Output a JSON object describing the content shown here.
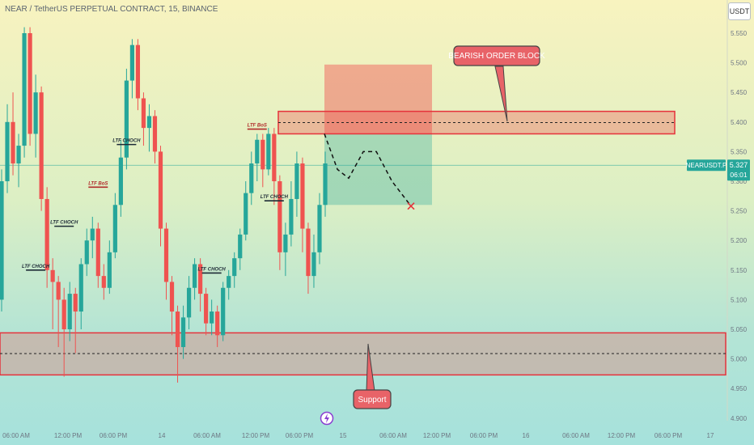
{
  "header": {
    "title": "NEAR / TetherUS PERPETUAL CONTRACT, 15, BINANCE",
    "currency": "USDT"
  },
  "chart_data": {
    "type": "candlestick",
    "symbol": "NEARUSDT.P",
    "y_ticks": [
      "5.550",
      "5.500",
      "5.450",
      "5.400",
      "5.350",
      "5.300",
      "5.250",
      "5.200",
      "5.150",
      "5.100",
      "5.050",
      "5.000",
      "4.950",
      "4.900"
    ],
    "ylim": [
      4.9,
      5.57
    ],
    "x_ticks": [
      "06:00 AM",
      "12:00 PM",
      "06:00 PM",
      "14",
      "06:00 AM",
      "12:00 PM",
      "06:00 PM",
      "15",
      "06:00 AM",
      "12:00 PM",
      "06:00 PM",
      "16",
      "06:00 AM",
      "12:00 PM",
      "06:00 PM",
      "17"
    ],
    "last_price": {
      "label": "NEARUSDT.P",
      "value": "5.327",
      "countdown": "06:01",
      "price": 5.327
    },
    "colors": {
      "up": "#26a69a",
      "down": "#ef5350",
      "zone_border": "#e5323b"
    },
    "candles": [
      [
        5.1,
        5.3,
        5.32,
        5.08
      ],
      [
        5.3,
        5.4,
        5.43,
        5.28
      ],
      [
        5.4,
        5.33,
        5.45,
        5.31
      ],
      [
        5.33,
        5.36,
        5.38,
        5.29
      ],
      [
        5.36,
        5.55,
        5.56,
        5.34
      ],
      [
        5.55,
        5.38,
        5.56,
        5.36
      ],
      [
        5.38,
        5.45,
        5.48,
        5.34
      ],
      [
        5.45,
        5.27,
        5.46,
        5.25
      ],
      [
        5.27,
        5.15,
        5.29,
        5.12
      ],
      [
        5.15,
        5.13,
        5.17,
        5.05
      ],
      [
        5.13,
        5.1,
        5.14,
        5.02
      ],
      [
        5.1,
        5.05,
        5.12,
        4.97
      ],
      [
        5.05,
        5.11,
        5.13,
        5.03
      ],
      [
        5.11,
        5.08,
        5.12,
        5.01
      ],
      [
        5.08,
        5.16,
        5.17,
        5.05
      ],
      [
        5.16,
        5.2,
        5.22,
        5.14
      ],
      [
        5.2,
        5.22,
        5.24,
        5.17
      ],
      [
        5.22,
        5.14,
        5.23,
        5.12
      ],
      [
        5.14,
        5.12,
        5.16,
        5.1
      ],
      [
        5.12,
        5.18,
        5.2,
        5.11
      ],
      [
        5.18,
        5.26,
        5.28,
        5.17
      ],
      [
        5.26,
        5.34,
        5.37,
        5.24
      ],
      [
        5.34,
        5.47,
        5.49,
        5.32
      ],
      [
        5.47,
        5.53,
        5.54,
        5.44
      ],
      [
        5.53,
        5.44,
        5.54,
        5.42
      ],
      [
        5.44,
        5.39,
        5.45,
        5.36
      ],
      [
        5.39,
        5.41,
        5.43,
        5.35
      ],
      [
        5.41,
        5.35,
        5.42,
        5.33
      ],
      [
        5.35,
        5.22,
        5.36,
        5.19
      ],
      [
        5.22,
        5.13,
        5.23,
        5.1
      ],
      [
        5.13,
        5.08,
        5.14,
        5.04
      ],
      [
        5.08,
        5.02,
        5.09,
        4.96
      ],
      [
        5.02,
        5.07,
        5.09,
        5.0
      ],
      [
        5.07,
        5.12,
        5.14,
        5.05
      ],
      [
        5.12,
        5.16,
        5.17,
        5.1
      ],
      [
        5.16,
        5.11,
        5.17,
        5.08
      ],
      [
        5.11,
        5.06,
        5.12,
        5.04
      ],
      [
        5.06,
        5.08,
        5.1,
        5.04
      ],
      [
        5.08,
        5.04,
        5.09,
        5.02
      ],
      [
        5.04,
        5.12,
        5.13,
        5.03
      ],
      [
        5.12,
        5.14,
        5.15,
        5.1
      ],
      [
        5.14,
        5.17,
        5.18,
        5.12
      ],
      [
        5.17,
        5.21,
        5.22,
        5.15
      ],
      [
        5.21,
        5.28,
        5.3,
        5.2
      ],
      [
        5.28,
        5.33,
        5.35,
        5.26
      ],
      [
        5.33,
        5.37,
        5.38,
        5.3
      ],
      [
        5.37,
        5.32,
        5.38,
        5.29
      ],
      [
        5.32,
        5.38,
        5.39,
        5.31
      ],
      [
        5.38,
        5.3,
        5.39,
        5.26
      ],
      [
        5.3,
        5.18,
        5.31,
        5.15
      ],
      [
        5.18,
        5.21,
        5.23,
        5.14
      ],
      [
        5.21,
        5.27,
        5.3,
        5.19
      ],
      [
        5.27,
        5.33,
        5.35,
        5.24
      ],
      [
        5.33,
        5.22,
        5.34,
        5.18
      ],
      [
        5.22,
        5.14,
        5.23,
        5.11
      ],
      [
        5.14,
        5.18,
        5.21,
        5.12
      ],
      [
        5.18,
        5.26,
        5.28,
        5.16
      ],
      [
        5.26,
        5.33,
        5.35,
        5.24
      ]
    ],
    "markers": [
      {
        "label": "LTF CHOCH",
        "i": 6,
        "y": 5.15,
        "color": "#1d2a36"
      },
      {
        "label": "LTF CHOCH",
        "i": 11,
        "y": 5.224,
        "color": "#1d2a36"
      },
      {
        "label": "LTF BoS",
        "i": 17,
        "y": 5.29,
        "color": "#b02a2a"
      },
      {
        "label": "LTF CHOCH",
        "i": 22,
        "y": 5.362,
        "color": "#1d2a36"
      },
      {
        "label": "LTF CHOCH",
        "i": 37,
        "y": 5.145,
        "color": "#1d2a36"
      },
      {
        "label": "LTF CHOCH",
        "i": 48,
        "y": 5.267,
        "color": "#1d2a36"
      },
      {
        "label": "LTF BoS",
        "i": 45,
        "y": 5.388,
        "color": "#b02a2a"
      }
    ],
    "zones": {
      "order_block": {
        "label": "BEARISH ORDER BLOCK",
        "y1": 5.38,
        "y2": 5.418,
        "mid": 5.399
      },
      "support": {
        "label": "Support",
        "y1": 4.973,
        "y2": 5.044,
        "mid": 5.009
      }
    },
    "position": {
      "entry": 5.38,
      "stop": 5.497,
      "target": 5.26
    },
    "projection": [
      [
        0,
        5.38
      ],
      [
        0.15,
        5.32
      ],
      [
        0.28,
        5.305
      ],
      [
        0.45,
        5.35
      ],
      [
        0.6,
        5.35
      ],
      [
        0.78,
        5.3
      ],
      [
        1,
        5.258
      ]
    ]
  }
}
